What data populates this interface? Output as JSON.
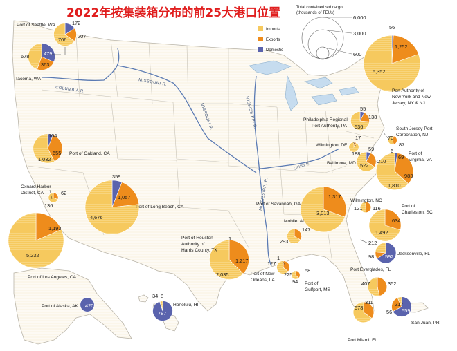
{
  "title": "2022年按集装箱分布的前25大港口位置",
  "legend": {
    "size_title_line1": "Total containerized cargo",
    "size_title_line2": "(thousands of TEUs)",
    "size_ticks": [
      "6,000",
      "3,000",
      "600"
    ],
    "categories": [
      {
        "name": "Imports",
        "color": "#f6c95e"
      },
      {
        "name": "Exports",
        "color": "#ee8c1c"
      },
      {
        "name": "Domestic",
        "color": "#5a63ad"
      }
    ]
  },
  "rivers": [
    "COLUMBIA R.",
    "MISSOURI R.",
    "MISSOURI R.",
    "MISSISSIPPI R.",
    "OHIO R.",
    "MISSISSIPPI R."
  ],
  "ports": [
    {
      "name": "Port of Seattle, WA",
      "imports": "706",
      "exports": "207",
      "domestic": "172"
    },
    {
      "name": "Tacoma, WA",
      "imports": "678",
      "exports": "363",
      "domestic": "479"
    },
    {
      "name": "Port of Oakland, CA",
      "imports": "1,032",
      "exports": "655",
      "domestic": "104"
    },
    {
      "name": "Port of Long Beach, CA",
      "imports": "4,676",
      "exports": "1,057",
      "domestic": "359"
    },
    {
      "name": "Oxnard Harbor District, CA",
      "imports": "136",
      "exports": "62",
      "domestic": ""
    },
    {
      "name": "Port of Los Angeles, CA",
      "imports": "5,232",
      "exports": "1,193",
      "domestic": ""
    },
    {
      "name": "Port Authority of New York and New Jersey, NY & NJ",
      "imports": "5,352",
      "exports": "1,252",
      "domestic": "56"
    },
    {
      "name": "Philadelphia Regional Port Authority, PA",
      "imports": "536",
      "exports": "138",
      "domestic": "55"
    },
    {
      "name": "South Jersey Port Corporation, NJ",
      "imports": "87",
      "exports": "70",
      "domestic": "6"
    },
    {
      "name": "Wilmington, DE",
      "imports": "188",
      "exports": "17",
      "domestic": ""
    },
    {
      "name": "Baltimore, MD",
      "imports": "522",
      "exports": "210",
      "domestic": "59"
    },
    {
      "name": "Port of Virginia, VA",
      "imports": "1,810",
      "exports": "983",
      "domestic": "69"
    },
    {
      "name": "Wilmington, NC",
      "imports": "121",
      "exports": "116",
      "domestic": ""
    },
    {
      "name": "Port of Savannah, GA",
      "imports": "3,013",
      "exports": "1,317",
      "domestic": ""
    },
    {
      "name": "Port of Charleston, SC",
      "imports": "1,492",
      "exports": "634",
      "domestic": ""
    },
    {
      "name": "Jacksonville, FL",
      "imports": "212",
      "exports": "98",
      "domestic": "592"
    },
    {
      "name": "Mobile, AL",
      "imports": "293",
      "exports": "147",
      "domestic": ""
    },
    {
      "name": "Port of New Orleans, LA",
      "imports": "225",
      "exports": "127",
      "domestic": "1"
    },
    {
      "name": "Port of Gulfport, MS",
      "imports": "94",
      "exports": "58",
      "domestic": ""
    },
    {
      "name": "Port of Houston Authority of Harris County, TX",
      "imports": "2,035",
      "exports": "1,217",
      "domestic": "1"
    },
    {
      "name": "Port Everglades, FL",
      "imports": "407",
      "exports": "352",
      "domestic": ""
    },
    {
      "name": "Port Miami, FL",
      "imports": "578",
      "exports": "311",
      "domestic": ""
    },
    {
      "name": "San Juan, PR",
      "imports": "56",
      "exports": "217",
      "domestic": "559"
    },
    {
      "name": "Port of Alaska, AK",
      "imports": "",
      "exports": "",
      "domestic": "420"
    },
    {
      "name": "Honolulu, HI",
      "imports": "34",
      "exports": "8",
      "domestic": "787"
    }
  ]
}
